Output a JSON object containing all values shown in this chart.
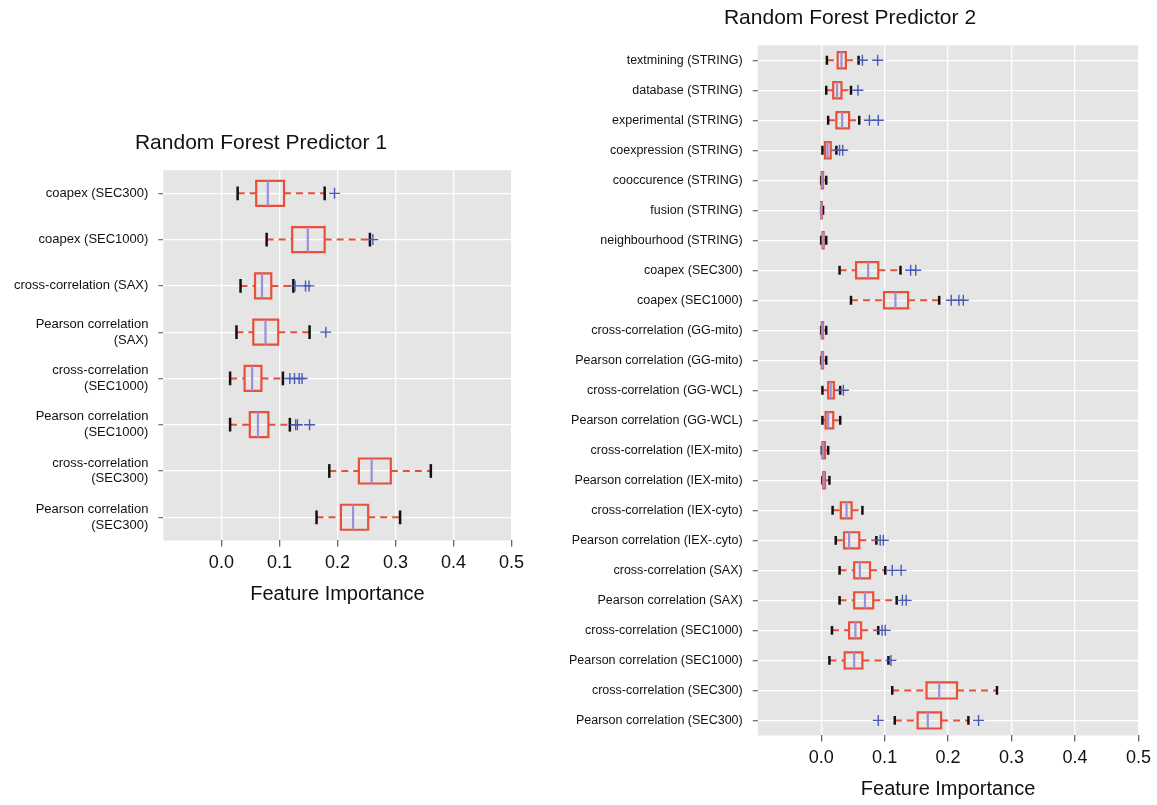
{
  "chart_data": [
    {
      "type": "box",
      "title": "Random Forest Predictor 1",
      "xlabel": "Feature Importance",
      "orientation": "horizontal",
      "grid": true,
      "categories": [
        "coapex (SEC300)",
        "coapex (SEC1000)",
        "cross-correlation (SAX)",
        "Pearson correlation (SAX)",
        "cross-correlation (SEC1000)",
        "Pearson correlation (SEC1000)",
        "cross-correlation (SEC300)",
        "Pearson correlation (SEC300)"
      ],
      "boxes": [
        {
          "low": 0.028,
          "q1": 0.06,
          "median": 0.08,
          "q3": 0.108,
          "high": 0.178,
          "outliers": [
            0.195
          ]
        },
        {
          "low": 0.078,
          "q1": 0.122,
          "median": 0.149,
          "q3": 0.178,
          "high": 0.256,
          "outliers": [
            0.261
          ]
        },
        {
          "low": 0.033,
          "q1": 0.058,
          "median": 0.07,
          "q3": 0.086,
          "high": 0.124,
          "outliers": [
            0.127,
            0.145,
            0.151
          ]
        },
        {
          "low": 0.026,
          "q1": 0.055,
          "median": 0.076,
          "q3": 0.098,
          "high": 0.152,
          "outliers": [
            0.18
          ]
        },
        {
          "low": 0.015,
          "q1": 0.04,
          "median": 0.053,
          "q3": 0.069,
          "high": 0.106,
          "outliers": [
            0.118,
            0.126,
            0.134,
            0.139
          ]
        },
        {
          "low": 0.015,
          "q1": 0.049,
          "median": 0.063,
          "q3": 0.081,
          "high": 0.118,
          "outliers": [
            0.128,
            0.131,
            0.152
          ]
        },
        {
          "low": 0.186,
          "q1": 0.237,
          "median": 0.259,
          "q3": 0.292,
          "high": 0.361
        },
        {
          "low": 0.164,
          "q1": 0.206,
          "median": 0.227,
          "q3": 0.253,
          "high": 0.308
        }
      ],
      "xlim": [
        -0.1,
        0.5
      ],
      "xticks": [
        {
          "value": 0,
          "label": "0.0"
        },
        {
          "value": 0.1,
          "label": "0.1"
        },
        {
          "value": 0.2,
          "label": "0.2"
        },
        {
          "value": 0.3,
          "label": "0.3"
        },
        {
          "value": 0.4,
          "label": "0.4"
        },
        {
          "value": 0.5,
          "label": "0.5"
        }
      ]
    },
    {
      "type": "box",
      "title": "Random Forest Predictor 2",
      "xlabel": "Feature Importance",
      "orientation": "horizontal",
      "grid": true,
      "categories": [
        "textmining (STRING)",
        "database (STRING)",
        "experimental (STRING)",
        "coexpression (STRING)",
        "cooccurence (STRING)",
        "fusion (STRING)",
        "neighbourhood (STRING)",
        "coapex (SEC300)",
        "coapex (SEC1000)",
        "cross-correlation (GG-mito)",
        "Pearson correlation (GG-mito)",
        "cross-correlation (GG-WCL)",
        "Pearson correlation (GG-WCL)",
        "cross-correlation (IEX-mito)",
        "Pearson correlation (IEX-mito)",
        "cross-correlation (IEX-cyto)",
        "Pearson correlation (IEX-.cyto)",
        "cross-correlation (SAX)",
        "Pearson correlation (SAX)",
        "cross-correlation (SEC1000)",
        "Pearson correlation (SEC1000)",
        "cross-correlation (SEC300)",
        "Pearson correlation (SEC300)"
      ],
      "boxes": [
        {
          "low": 0.009,
          "q1": 0.026,
          "median": 0.032,
          "q3": 0.039,
          "high": 0.059,
          "outliers": [
            0.065,
            0.089
          ]
        },
        {
          "low": 0.008,
          "q1": 0.019,
          "median": 0.025,
          "q3": 0.032,
          "high": 0.047,
          "outliers": [
            0.058
          ]
        },
        {
          "low": 0.011,
          "q1": 0.024,
          "median": 0.033,
          "q3": 0.044,
          "high": 0.06,
          "outliers": [
            0.076,
            0.09
          ]
        },
        {
          "low": 0.002,
          "q1": 0.006,
          "median": 0.01,
          "q3": 0.015,
          "high": 0.024,
          "outliers": [
            0.029,
            0.034
          ]
        },
        {
          "low": 0,
          "q1": 0.001,
          "median": 0.002,
          "q3": 0.003,
          "high": 0.008
        },
        {
          "low": 0,
          "q1": 0,
          "median": 0,
          "q3": 0.001,
          "high": 0.003
        },
        {
          "low": 0,
          "q1": 0.002,
          "median": 0.003,
          "q3": 0.004,
          "high": 0.008
        },
        {
          "low": 0.029,
          "q1": 0.055,
          "median": 0.074,
          "q3": 0.09,
          "high": 0.125,
          "outliers": [
            0.141,
            0.149
          ]
        },
        {
          "low": 0.047,
          "q1": 0.099,
          "median": 0.117,
          "q3": 0.137,
          "high": 0.186,
          "outliers": [
            0.205,
            0.217,
            0.224
          ]
        },
        {
          "low": 0,
          "q1": 0.001,
          "median": 0.002,
          "q3": 0.003,
          "high": 0.008
        },
        {
          "low": 0,
          "q1": 0.001,
          "median": 0.002,
          "q3": 0.003,
          "high": 0.008
        },
        {
          "low": 0.002,
          "q1": 0.011,
          "median": 0.015,
          "q3": 0.02,
          "high": 0.03,
          "outliers": [
            0.035
          ]
        },
        {
          "low": 0.002,
          "q1": 0.007,
          "median": 0.011,
          "q3": 0.019,
          "high": 0.03
        },
        {
          "low": 0.001,
          "q1": 0.002,
          "median": 0.003,
          "q3": 0.006,
          "high": 0.011
        },
        {
          "low": 0.002,
          "q1": 0.003,
          "median": 0.004,
          "q3": 0.006,
          "high": 0.013
        },
        {
          "low": 0.018,
          "q1": 0.031,
          "median": 0.04,
          "q3": 0.048,
          "high": 0.065
        },
        {
          "low": 0.023,
          "q1": 0.036,
          "median": 0.044,
          "q3": 0.06,
          "high": 0.087,
          "outliers": [
            0.093,
            0.098
          ]
        },
        {
          "low": 0.029,
          "q1": 0.052,
          "median": 0.061,
          "q3": 0.077,
          "high": 0.101,
          "outliers": [
            0.112,
            0.126
          ]
        },
        {
          "low": 0.029,
          "q1": 0.052,
          "median": 0.069,
          "q3": 0.082,
          "high": 0.119,
          "outliers": [
            0.128,
            0.134
          ]
        },
        {
          "low": 0.017,
          "q1": 0.044,
          "median": 0.054,
          "q3": 0.063,
          "high": 0.09,
          "outliers": [
            0.096,
            0.101
          ]
        },
        {
          "low": 0.013,
          "q1": 0.037,
          "median": 0.052,
          "q3": 0.065,
          "high": 0.106,
          "outliers": [
            0.11
          ]
        },
        {
          "low": 0.112,
          "q1": 0.166,
          "median": 0.186,
          "q3": 0.214,
          "high": 0.277
        },
        {
          "low": 0.116,
          "q1": 0.152,
          "median": 0.168,
          "q3": 0.189,
          "high": 0.232,
          "outliers": [
            0.09,
            0.248
          ]
        }
      ],
      "xlim": [
        -0.1,
        0.5
      ],
      "xticks": [
        {
          "value": 0,
          "label": "0.0"
        },
        {
          "value": 0.1,
          "label": "0.1"
        },
        {
          "value": 0.2,
          "label": "0.2"
        },
        {
          "value": 0.3,
          "label": "0.3"
        },
        {
          "value": 0.4,
          "label": "0.4"
        },
        {
          "value": 0.5,
          "label": "0.5"
        }
      ]
    }
  ]
}
